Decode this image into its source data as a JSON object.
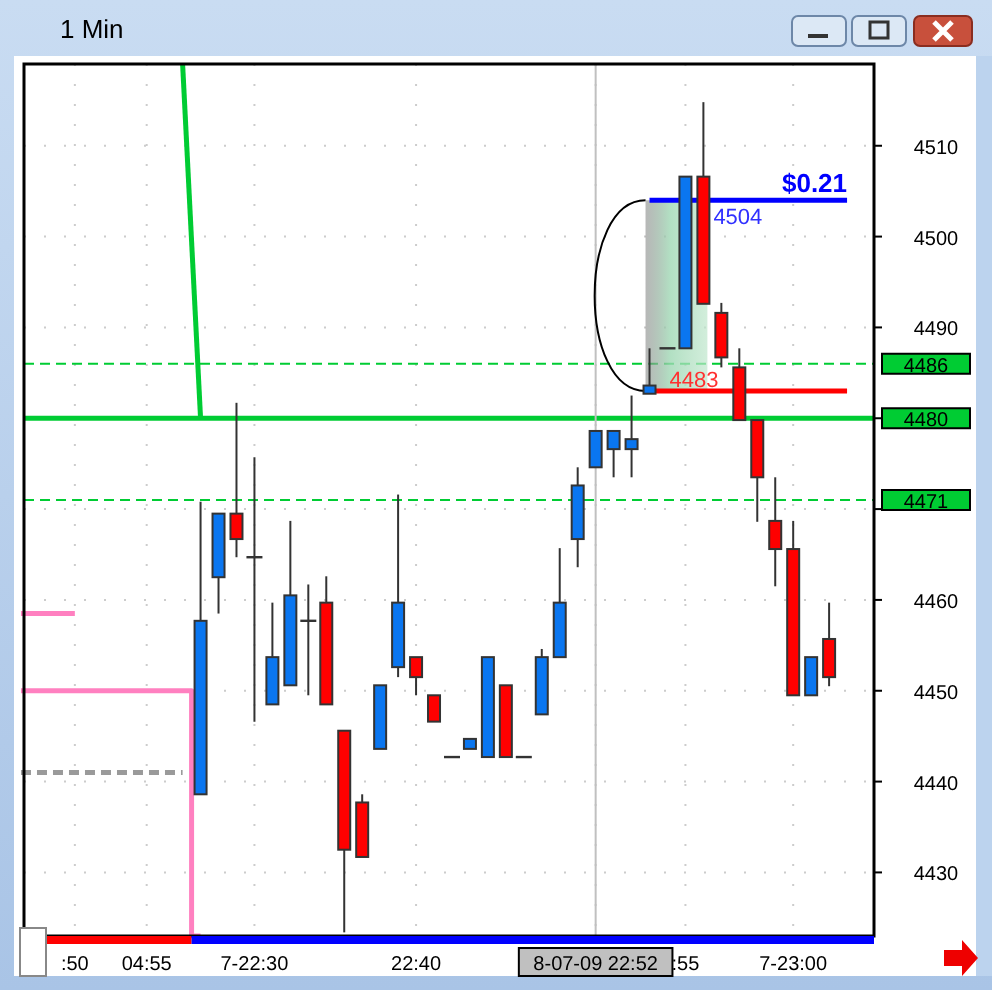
{
  "chart_data": {
    "type": "candlestick",
    "title": "1 Min",
    "categories": [
      null,
      null,
      null,
      ":50",
      null,
      null,
      null,
      "04:55",
      null,
      null,
      null,
      null,
      null,
      "7-22:30",
      null,
      null,
      null,
      null,
      null,
      null,
      null,
      null,
      "22:40",
      null,
      null,
      null,
      null,
      null,
      null,
      null,
      null,
      null,
      "8-07-09 22:52",
      null,
      null,
      null,
      null,
      ":55",
      null,
      null,
      null,
      null,
      null,
      "7-23:00",
      null,
      null,
      null,
      null
    ],
    "ohlc": [
      null,
      null,
      null,
      null,
      null,
      null,
      null,
      null,
      null,
      null,
      [
        4438.6,
        4470.8,
        4438.6,
        4457.7
      ],
      [
        4462.5,
        4469.5,
        4458.5,
        4469.5
      ],
      [
        4469.5,
        4481.7,
        4464.7,
        4466.7
      ],
      [
        4464.7,
        4475.7,
        4446.6,
        4464.7
      ],
      [
        4448.5,
        4459.7,
        4448.5,
        4453.7
      ],
      [
        4450.6,
        4468.7,
        4450.6,
        4460.5
      ],
      [
        4457.7,
        4461.7,
        4449.5,
        4457.7
      ],
      [
        4459.7,
        4462.6,
        4448.5,
        4448.5
      ],
      [
        4445.6,
        4445.6,
        4423.4,
        4432.5
      ],
      [
        4437.7,
        4438.6,
        4431.7,
        4431.7
      ],
      [
        4443.6,
        4450.6,
        4443.6,
        4450.6
      ],
      [
        4452.6,
        4471.6,
        4451.5,
        4459.7
      ],
      [
        4453.7,
        4453.7,
        4449.5,
        4451.5
      ],
      [
        4449.5,
        4449.5,
        4446.6,
        4446.6
      ],
      [
        4442.7,
        4442.7,
        4442.7,
        4442.7
      ],
      [
        4443.6,
        4444.7,
        4443.6,
        4444.7
      ],
      [
        4442.7,
        4453.7,
        4442.7,
        4453.7
      ],
      [
        4450.6,
        4450.6,
        4442.7,
        4442.7
      ],
      [
        4442.7,
        4442.7,
        4442.7,
        4442.7
      ],
      [
        4447.4,
        4454.6,
        4447.4,
        4453.7
      ],
      [
        4453.7,
        4465.7,
        4453.7,
        4459.7
      ],
      [
        4466.7,
        4474.6,
        4463.6,
        4472.6
      ],
      [
        4474.6,
        4478.6,
        4474.6,
        4478.6
      ],
      [
        4476.6,
        4478.6,
        4473.5,
        4478.6
      ],
      [
        4476.6,
        4482.5,
        4473.5,
        4477.7
      ],
      [
        4482.7,
        4487.7,
        4482.7,
        4483.6
      ],
      [
        4487.7,
        4487.7,
        4487.7,
        4487.7
      ],
      [
        4487.7,
        4506.6,
        4487.7,
        4506.6
      ],
      [
        4506.6,
        4514.8,
        4492.6,
        4492.6
      ],
      [
        4491.6,
        4492.7,
        4485.6,
        4486.7
      ],
      [
        4485.6,
        4487.7,
        4479.8,
        4479.8
      ],
      [
        4479.8,
        4479.8,
        4468.6,
        4473.5
      ],
      [
        4468.7,
        4473.5,
        4461.5,
        4465.6
      ],
      [
        4465.6,
        4468.7,
        4449.5,
        4449.5
      ],
      [
        4449.5,
        4453.7,
        4449.5,
        4453.7
      ],
      [
        4455.7,
        4459.7,
        4450.5,
        4451.5
      ],
      null,
      null
    ],
    "colors": [
      null,
      null,
      null,
      null,
      null,
      null,
      null,
      null,
      null,
      null,
      "#0a76f0",
      "#0a76f0",
      "#ff0000",
      null,
      "#0a76f0",
      "#0a76f0",
      null,
      "#ff0000",
      "#ff0000",
      "#ff0000",
      "#0a76f0",
      "#0a76f0",
      "#ff0000",
      "#ff0000",
      null,
      "#0a76f0",
      "#0a76f0",
      "#ff0000",
      null,
      "#0a76f0",
      "#0a76f0",
      "#0a76f0",
      "#0a76f0",
      "#0a76f0",
      "#0a76f0",
      "#0a76f0",
      null,
      "#0a76f0",
      "#ff0000",
      "#ff0000",
      "#ff0000",
      "#ff0000",
      "#ff0000",
      "#ff0000",
      "#0a76f0",
      "#ff0000",
      null,
      null
    ],
    "series": [
      {
        "type": "line",
        "color": "#00cc33",
        "line_style": "solid",
        "values": [
          null,
          null,
          null,
          null,
          null,
          null,
          null,
          null,
          null,
          4519,
          4480,
          null,
          null,
          null,
          null,
          null,
          null,
          null,
          null,
          null,
          null,
          null,
          null,
          null,
          null,
          null,
          null,
          null,
          null,
          null,
          null,
          null,
          null,
          null,
          null,
          null,
          null,
          null,
          null,
          null,
          null,
          null,
          null,
          null,
          null,
          null,
          null,
          null
        ]
      },
      {
        "type": "line",
        "color": "#ff80c0",
        "line_style": "solid",
        "values": [
          4458.5,
          4458.5,
          4458.5,
          4458.5,
          null,
          null,
          null,
          null,
          null,
          null,
          null,
          null,
          null,
          null,
          null,
          null,
          null,
          null,
          null,
          null,
          null,
          null,
          null,
          null,
          null,
          null,
          null,
          null,
          null,
          null,
          null,
          null,
          null,
          null,
          null,
          null,
          null,
          null,
          null,
          null,
          null,
          null,
          null,
          null,
          null,
          null,
          null,
          null
        ]
      },
      {
        "type": "step",
        "color": "#ff80c0",
        "line_style": "solid",
        "values": [
          4450,
          4450,
          4450,
          4450,
          4450,
          4450,
          4450,
          4450,
          4450,
          4450,
          4423,
          null,
          null,
          null,
          null,
          null,
          null,
          null,
          null,
          null,
          null,
          null,
          null,
          null,
          null,
          null,
          null,
          null,
          null,
          null,
          null,
          null,
          null,
          null,
          null,
          null,
          null,
          null,
          null,
          null,
          null,
          null,
          null,
          null,
          null,
          null,
          null,
          null
        ]
      },
      {
        "type": "line",
        "color": "#9a9a9a",
        "line_style": "dashed",
        "values": [
          4441,
          4441,
          4441,
          4441,
          4441,
          4441,
          4441,
          4441,
          4441,
          4441,
          null,
          null,
          null,
          null,
          null,
          null,
          null,
          null,
          null,
          null,
          null,
          null,
          null,
          null,
          null,
          null,
          null,
          null,
          null,
          null,
          null,
          null,
          null,
          null,
          null,
          null,
          null,
          null,
          null,
          null,
          null,
          null,
          null,
          null,
          null,
          null,
          null,
          null
        ]
      },
      {
        "type": "line",
        "color": "#0000ff",
        "line_style": "solid",
        "values": [
          null,
          null,
          null,
          null,
          null,
          null,
          null,
          null,
          null,
          null,
          null,
          null,
          null,
          null,
          null,
          null,
          null,
          null,
          null,
          null,
          null,
          null,
          null,
          null,
          null,
          null,
          null,
          null,
          null,
          null,
          null,
          null,
          null,
          null,
          null,
          4504,
          4504,
          4504,
          4504,
          4504,
          4504,
          4504,
          4504,
          4504,
          4504,
          4504,
          4504,
          null
        ]
      },
      {
        "type": "line",
        "color": "#ff0000",
        "line_style": "solid",
        "values": [
          null,
          null,
          null,
          null,
          null,
          null,
          null,
          null,
          null,
          null,
          null,
          null,
          null,
          null,
          null,
          null,
          null,
          null,
          null,
          null,
          null,
          null,
          null,
          null,
          null,
          null,
          null,
          null,
          null,
          null,
          null,
          null,
          null,
          null,
          null,
          4483,
          4483,
          4483,
          4483,
          4483,
          4483,
          4483,
          4483,
          4483,
          4483,
          4483,
          4483,
          null
        ]
      }
    ],
    "ylim": [
      4423,
      4519
    ],
    "yticks": [
      4430,
      4440,
      4450,
      4460,
      {
        "value": 4470,
        "label": null
      },
      {
        "value": 4480,
        "label": null
      },
      4490,
      4500,
      4510
    ],
    "grid": true,
    "ref_lines": [
      {
        "axis": "y",
        "value": 4486,
        "label": "4486",
        "color": "#00cc33",
        "line_style": "dashed"
      },
      {
        "axis": "y",
        "value": 4480,
        "label": "4480",
        "color": "#00cc33",
        "line_style": "solid"
      },
      {
        "axis": "y",
        "value": 4471,
        "label": "4471",
        "color": "#00cc33",
        "line_style": "dashed"
      },
      {
        "axis": "x",
        "value": "8-07-09 22:52",
        "label": null,
        "color": "#c0c0c0",
        "line_style": "solid"
      }
    ],
    "annotations": [
      {
        "text": "$0.21",
        "y": 4504
      },
      {
        "text": "4504",
        "y": 4504
      },
      {
        "text": "4483",
        "y": 4483
      }
    ]
  }
}
